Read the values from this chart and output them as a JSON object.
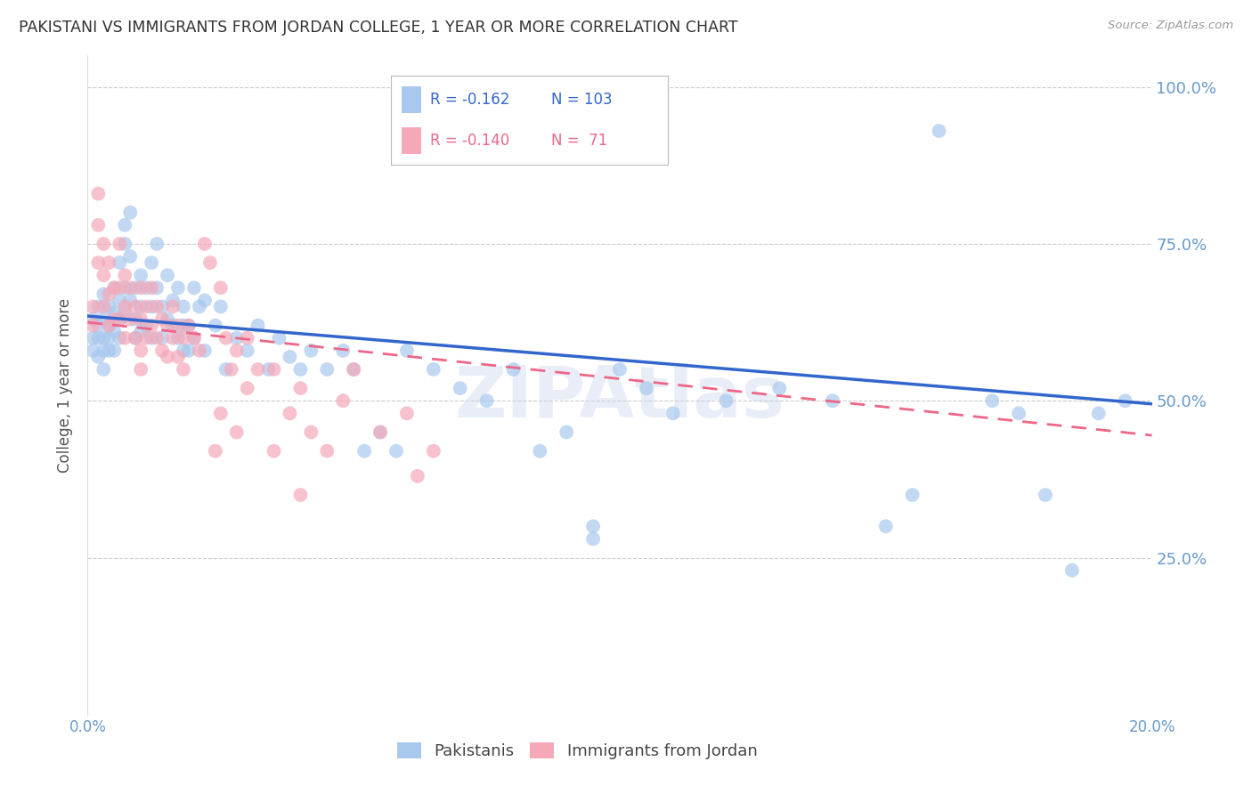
{
  "title": "PAKISTANI VS IMMIGRANTS FROM JORDAN COLLEGE, 1 YEAR OR MORE CORRELATION CHART",
  "source_text": "Source: ZipAtlas.com",
  "ylabel": "College, 1 year or more",
  "xmin": 0.0,
  "xmax": 0.2,
  "ymin": 0.0,
  "ymax": 1.05,
  "yticks": [
    0.0,
    0.25,
    0.5,
    0.75,
    1.0
  ],
  "ytick_labels": [
    "",
    "25.0%",
    "50.0%",
    "75.0%",
    "100.0%"
  ],
  "xticks": [
    0.0,
    0.05,
    0.1,
    0.15,
    0.2
  ],
  "xtick_labels": [
    "0.0%",
    "",
    "",
    "",
    "20.0%"
  ],
  "blue_color": "#A8C8EE",
  "pink_color": "#F4A8B8",
  "blue_line_color": "#3366CC",
  "pink_line_color": "#EE6688",
  "legend_blue_label": "Pakistanis",
  "legend_pink_label": "Immigrants from Jordan",
  "R_blue": -0.162,
  "N_blue": 103,
  "R_pink": -0.14,
  "N_pink": 71,
  "watermark": "ZIPAtlas",
  "right_axis_color": "#6699CC",
  "axis_label_color": "#6699CC",
  "blue_line_y0": 0.635,
  "blue_line_y1": 0.495,
  "pink_line_y0": 0.625,
  "pink_line_y1": 0.445,
  "blue_scatter": [
    [
      0.001,
      0.63
    ],
    [
      0.001,
      0.6
    ],
    [
      0.001,
      0.58
    ],
    [
      0.002,
      0.65
    ],
    [
      0.002,
      0.62
    ],
    [
      0.002,
      0.6
    ],
    [
      0.002,
      0.57
    ],
    [
      0.003,
      0.67
    ],
    [
      0.003,
      0.63
    ],
    [
      0.003,
      0.6
    ],
    [
      0.003,
      0.58
    ],
    [
      0.003,
      0.55
    ],
    [
      0.004,
      0.65
    ],
    [
      0.004,
      0.62
    ],
    [
      0.004,
      0.6
    ],
    [
      0.004,
      0.58
    ],
    [
      0.005,
      0.68
    ],
    [
      0.005,
      0.64
    ],
    [
      0.005,
      0.61
    ],
    [
      0.005,
      0.58
    ],
    [
      0.006,
      0.72
    ],
    [
      0.006,
      0.66
    ],
    [
      0.006,
      0.63
    ],
    [
      0.006,
      0.6
    ],
    [
      0.007,
      0.78
    ],
    [
      0.007,
      0.75
    ],
    [
      0.007,
      0.68
    ],
    [
      0.007,
      0.64
    ],
    [
      0.008,
      0.8
    ],
    [
      0.008,
      0.73
    ],
    [
      0.008,
      0.66
    ],
    [
      0.009,
      0.68
    ],
    [
      0.009,
      0.63
    ],
    [
      0.009,
      0.6
    ],
    [
      0.01,
      0.7
    ],
    [
      0.01,
      0.65
    ],
    [
      0.01,
      0.61
    ],
    [
      0.011,
      0.68
    ],
    [
      0.011,
      0.62
    ],
    [
      0.012,
      0.72
    ],
    [
      0.012,
      0.65
    ],
    [
      0.012,
      0.6
    ],
    [
      0.013,
      0.75
    ],
    [
      0.013,
      0.68
    ],
    [
      0.014,
      0.65
    ],
    [
      0.014,
      0.6
    ],
    [
      0.015,
      0.7
    ],
    [
      0.015,
      0.63
    ],
    [
      0.016,
      0.66
    ],
    [
      0.016,
      0.62
    ],
    [
      0.017,
      0.68
    ],
    [
      0.017,
      0.6
    ],
    [
      0.018,
      0.65
    ],
    [
      0.018,
      0.58
    ],
    [
      0.019,
      0.62
    ],
    [
      0.02,
      0.68
    ],
    [
      0.02,
      0.6
    ],
    [
      0.022,
      0.66
    ],
    [
      0.022,
      0.58
    ],
    [
      0.024,
      0.62
    ],
    [
      0.025,
      0.65
    ],
    [
      0.026,
      0.55
    ],
    [
      0.028,
      0.6
    ],
    [
      0.03,
      0.58
    ],
    [
      0.032,
      0.62
    ],
    [
      0.034,
      0.55
    ],
    [
      0.036,
      0.6
    ],
    [
      0.038,
      0.57
    ],
    [
      0.04,
      0.55
    ],
    [
      0.042,
      0.58
    ],
    [
      0.045,
      0.55
    ],
    [
      0.048,
      0.58
    ],
    [
      0.05,
      0.55
    ],
    [
      0.052,
      0.42
    ],
    [
      0.055,
      0.45
    ],
    [
      0.058,
      0.42
    ],
    [
      0.06,
      0.58
    ],
    [
      0.065,
      0.55
    ],
    [
      0.07,
      0.52
    ],
    [
      0.075,
      0.5
    ],
    [
      0.08,
      0.55
    ],
    [
      0.085,
      0.42
    ],
    [
      0.09,
      0.45
    ],
    [
      0.095,
      0.3
    ],
    [
      0.095,
      0.28
    ],
    [
      0.1,
      0.55
    ],
    [
      0.105,
      0.52
    ],
    [
      0.11,
      0.48
    ],
    [
      0.12,
      0.5
    ],
    [
      0.13,
      0.52
    ],
    [
      0.14,
      0.5
    ],
    [
      0.15,
      0.3
    ],
    [
      0.155,
      0.35
    ],
    [
      0.16,
      0.93
    ],
    [
      0.17,
      0.5
    ],
    [
      0.175,
      0.48
    ],
    [
      0.18,
      0.35
    ],
    [
      0.185,
      0.23
    ],
    [
      0.19,
      0.48
    ],
    [
      0.195,
      0.5
    ],
    [
      0.018,
      0.62
    ],
    [
      0.019,
      0.58
    ],
    [
      0.021,
      0.65
    ]
  ],
  "pink_scatter": [
    [
      0.001,
      0.62
    ],
    [
      0.001,
      0.65
    ],
    [
      0.002,
      0.83
    ],
    [
      0.002,
      0.78
    ],
    [
      0.002,
      0.72
    ],
    [
      0.003,
      0.75
    ],
    [
      0.003,
      0.7
    ],
    [
      0.003,
      0.65
    ],
    [
      0.004,
      0.72
    ],
    [
      0.004,
      0.67
    ],
    [
      0.004,
      0.62
    ],
    [
      0.005,
      0.68
    ],
    [
      0.005,
      0.63
    ],
    [
      0.006,
      0.75
    ],
    [
      0.006,
      0.68
    ],
    [
      0.006,
      0.63
    ],
    [
      0.007,
      0.7
    ],
    [
      0.007,
      0.65
    ],
    [
      0.007,
      0.6
    ],
    [
      0.008,
      0.68
    ],
    [
      0.008,
      0.63
    ],
    [
      0.009,
      0.65
    ],
    [
      0.009,
      0.6
    ],
    [
      0.01,
      0.68
    ],
    [
      0.01,
      0.63
    ],
    [
      0.01,
      0.58
    ],
    [
      0.011,
      0.65
    ],
    [
      0.011,
      0.6
    ],
    [
      0.012,
      0.68
    ],
    [
      0.012,
      0.62
    ],
    [
      0.013,
      0.65
    ],
    [
      0.013,
      0.6
    ],
    [
      0.014,
      0.63
    ],
    [
      0.014,
      0.58
    ],
    [
      0.015,
      0.62
    ],
    [
      0.015,
      0.57
    ],
    [
      0.016,
      0.65
    ],
    [
      0.016,
      0.6
    ],
    [
      0.017,
      0.62
    ],
    [
      0.017,
      0.57
    ],
    [
      0.018,
      0.6
    ],
    [
      0.018,
      0.55
    ],
    [
      0.019,
      0.62
    ],
    [
      0.02,
      0.6
    ],
    [
      0.021,
      0.58
    ],
    [
      0.022,
      0.75
    ],
    [
      0.023,
      0.72
    ],
    [
      0.024,
      0.42
    ],
    [
      0.025,
      0.68
    ],
    [
      0.026,
      0.6
    ],
    [
      0.027,
      0.55
    ],
    [
      0.028,
      0.58
    ],
    [
      0.03,
      0.52
    ],
    [
      0.032,
      0.55
    ],
    [
      0.035,
      0.55
    ],
    [
      0.038,
      0.48
    ],
    [
      0.04,
      0.52
    ],
    [
      0.042,
      0.45
    ],
    [
      0.045,
      0.42
    ],
    [
      0.048,
      0.5
    ],
    [
      0.05,
      0.55
    ],
    [
      0.055,
      0.45
    ],
    [
      0.06,
      0.48
    ],
    [
      0.062,
      0.38
    ],
    [
      0.065,
      0.42
    ],
    [
      0.04,
      0.35
    ],
    [
      0.025,
      0.48
    ],
    [
      0.028,
      0.45
    ],
    [
      0.03,
      0.6
    ],
    [
      0.035,
      0.42
    ],
    [
      0.01,
      0.55
    ]
  ]
}
